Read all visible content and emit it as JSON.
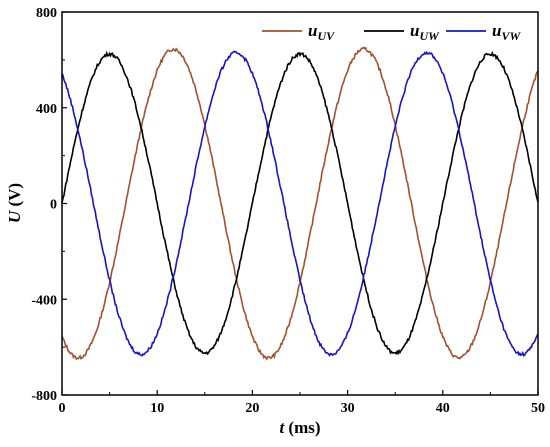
{
  "chart_data": {
    "type": "line",
    "xlabel": "ms",
    "xlabel_var": "t",
    "ylabel": "V",
    "ylabel_var": "U",
    "xlim": [
      0,
      50
    ],
    "ylim": [
      -800,
      800
    ],
    "x_ticks": [
      "0",
      "10",
      "20",
      "30",
      "40",
      "50"
    ],
    "y_ticks": [
      "800",
      "400",
      "0",
      "-400",
      "-800"
    ],
    "grid": false,
    "legend_position": "top-right",
    "period_ms": 20,
    "series": [
      {
        "name": "uUV",
        "name_main": "u",
        "name_sub": "UV",
        "color": "#A0522D",
        "amplitude": 645,
        "peak_time_ms": 11.7
      },
      {
        "name": "uUW",
        "name_main": "u",
        "name_sub": "UW",
        "color": "#000000",
        "amplitude": 625,
        "peak_time_ms": 5.0
      },
      {
        "name": "uVW",
        "name_main": "u",
        "name_sub": "VW",
        "color": "#1515C8",
        "amplitude": 630,
        "peak_time_ms": 18.3
      }
    ]
  }
}
